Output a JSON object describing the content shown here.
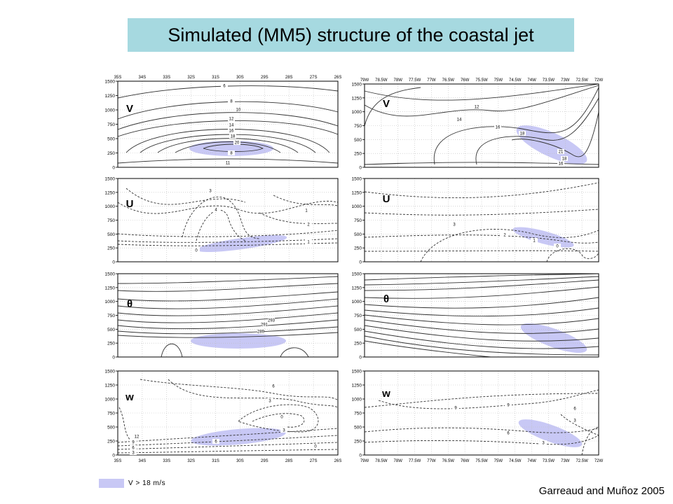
{
  "title": "Simulated (MM5) structure of the coastal jet",
  "credit": "Garreaud and Muñoz 2005",
  "legend": {
    "label": "V > 18 m/s",
    "color": "#c8c8f5"
  },
  "y_ticks": [
    "1500",
    "1250",
    "1000",
    "750",
    "500",
    "250",
    "0"
  ],
  "x_ticks_left": [
    "35S",
    "34S",
    "33S",
    "32S",
    "31S",
    "30S",
    "29S",
    "28S",
    "27S",
    "26S"
  ],
  "x_ticks_right": [
    "79W",
    "78.5W",
    "78W",
    "77.5W",
    "77W",
    "76.5W",
    "76W",
    "75.5W",
    "75W",
    "74.5W",
    "74W",
    "73.5W",
    "73W",
    "72.5W",
    "72W"
  ],
  "panels": [
    {
      "id": "lv",
      "var": "V",
      "labels": [
        {
          "t": "6"
        },
        {
          "t": "8"
        },
        {
          "t": "10"
        },
        {
          "t": "12"
        },
        {
          "t": "14"
        },
        {
          "t": "16"
        },
        {
          "t": "18"
        },
        {
          "t": "20"
        },
        {
          "t": "8"
        },
        {
          "t": "11"
        }
      ]
    },
    {
      "id": "rv",
      "var": "V",
      "labels": [
        {
          "t": "12"
        },
        {
          "t": "14"
        },
        {
          "t": "16"
        },
        {
          "t": "18"
        },
        {
          "t": "21"
        },
        {
          "t": "18"
        },
        {
          "t": "16"
        }
      ]
    },
    {
      "id": "lu",
      "var": "U",
      "labels": [
        {
          "t": "3"
        },
        {
          "t": "4"
        },
        {
          "t": "2"
        },
        {
          "t": "1"
        },
        {
          "t": "0"
        },
        {
          "t": "1"
        }
      ]
    },
    {
      "id": "ru",
      "var": "U",
      "labels": [
        {
          "t": "3"
        },
        {
          "t": "2"
        },
        {
          "t": "1"
        },
        {
          "t": "0"
        }
      ]
    },
    {
      "id": "lt",
      "var": "θ",
      "labels": [
        {
          "t": "293"
        },
        {
          "t": "291"
        },
        {
          "t": "289"
        }
      ]
    },
    {
      "id": "rt",
      "var": "θ",
      "labels": []
    },
    {
      "id": "lw",
      "var": "w",
      "labels": [
        {
          "t": "6"
        },
        {
          "t": "3"
        },
        {
          "t": "0"
        },
        {
          "t": "3"
        },
        {
          "t": "6"
        },
        {
          "t": "0"
        },
        {
          "t": "12"
        },
        {
          "t": "9"
        },
        {
          "t": "6"
        },
        {
          "t": "3"
        }
      ]
    },
    {
      "id": "rw",
      "var": "w",
      "labels": [
        {
          "t": "9"
        },
        {
          "t": "9"
        },
        {
          "t": "6"
        },
        {
          "t": "6"
        },
        {
          "t": "3"
        },
        {
          "t": "3"
        }
      ]
    }
  ]
}
